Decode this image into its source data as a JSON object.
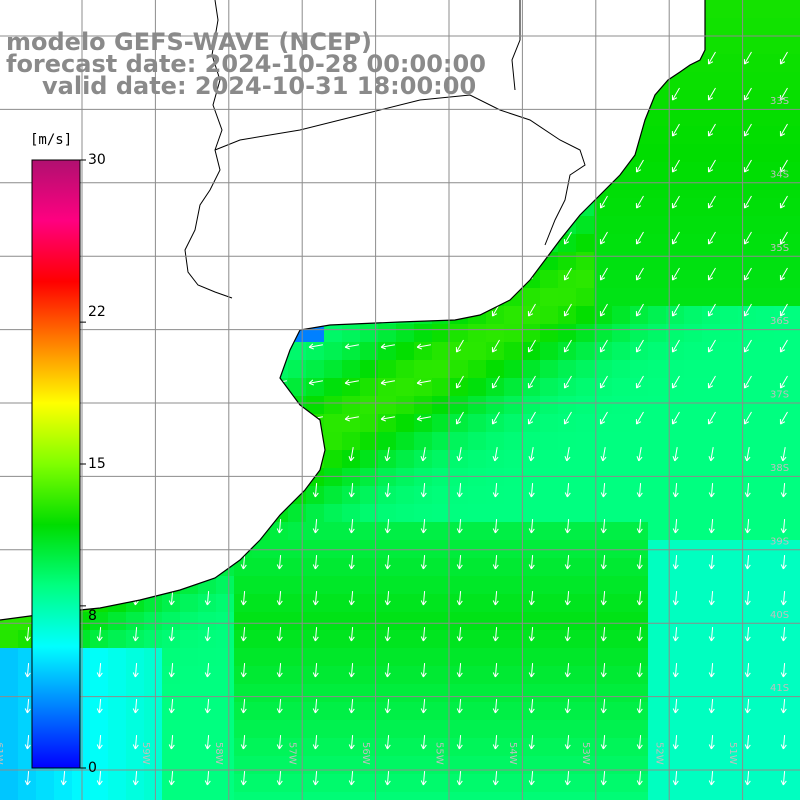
{
  "title": {
    "model": "modelo GEFS-WAVE (NCEP)",
    "forecast": "forecast date: 2024-10-28 00:00:00",
    "valid": "valid date: 2024-10-31 18:00:00"
  },
  "colorbar": {
    "unit": "[m/s]",
    "ticks": [
      "30",
      "22",
      "15",
      "8",
      "0"
    ],
    "tick_values": [
      30,
      22,
      15,
      8,
      0
    ],
    "range": [
      0,
      30
    ],
    "colors": [
      "#0000ff",
      "#0080ff",
      "#00ffff",
      "#00ff80",
      "#00dd00",
      "#80ff00",
      "#ffff00",
      "#ff8000",
      "#ff0000",
      "#ff0080",
      "#b01070"
    ]
  },
  "map": {
    "variable": "wind speed and direction",
    "land_color": "#ffffff",
    "grid_color": "#8c8c8c",
    "coast_color": "#000000",
    "arrow_color": "#ffffff",
    "lon_labels": [
      "61W",
      "60W",
      "59W",
      "58W",
      "57W",
      "56W",
      "55W",
      "54W",
      "53W",
      "52W",
      "51W"
    ],
    "lat_labels": [
      "33S",
      "34S",
      "35S",
      "36S",
      "37S",
      "38S",
      "39S",
      "40S",
      "41S"
    ]
  }
}
